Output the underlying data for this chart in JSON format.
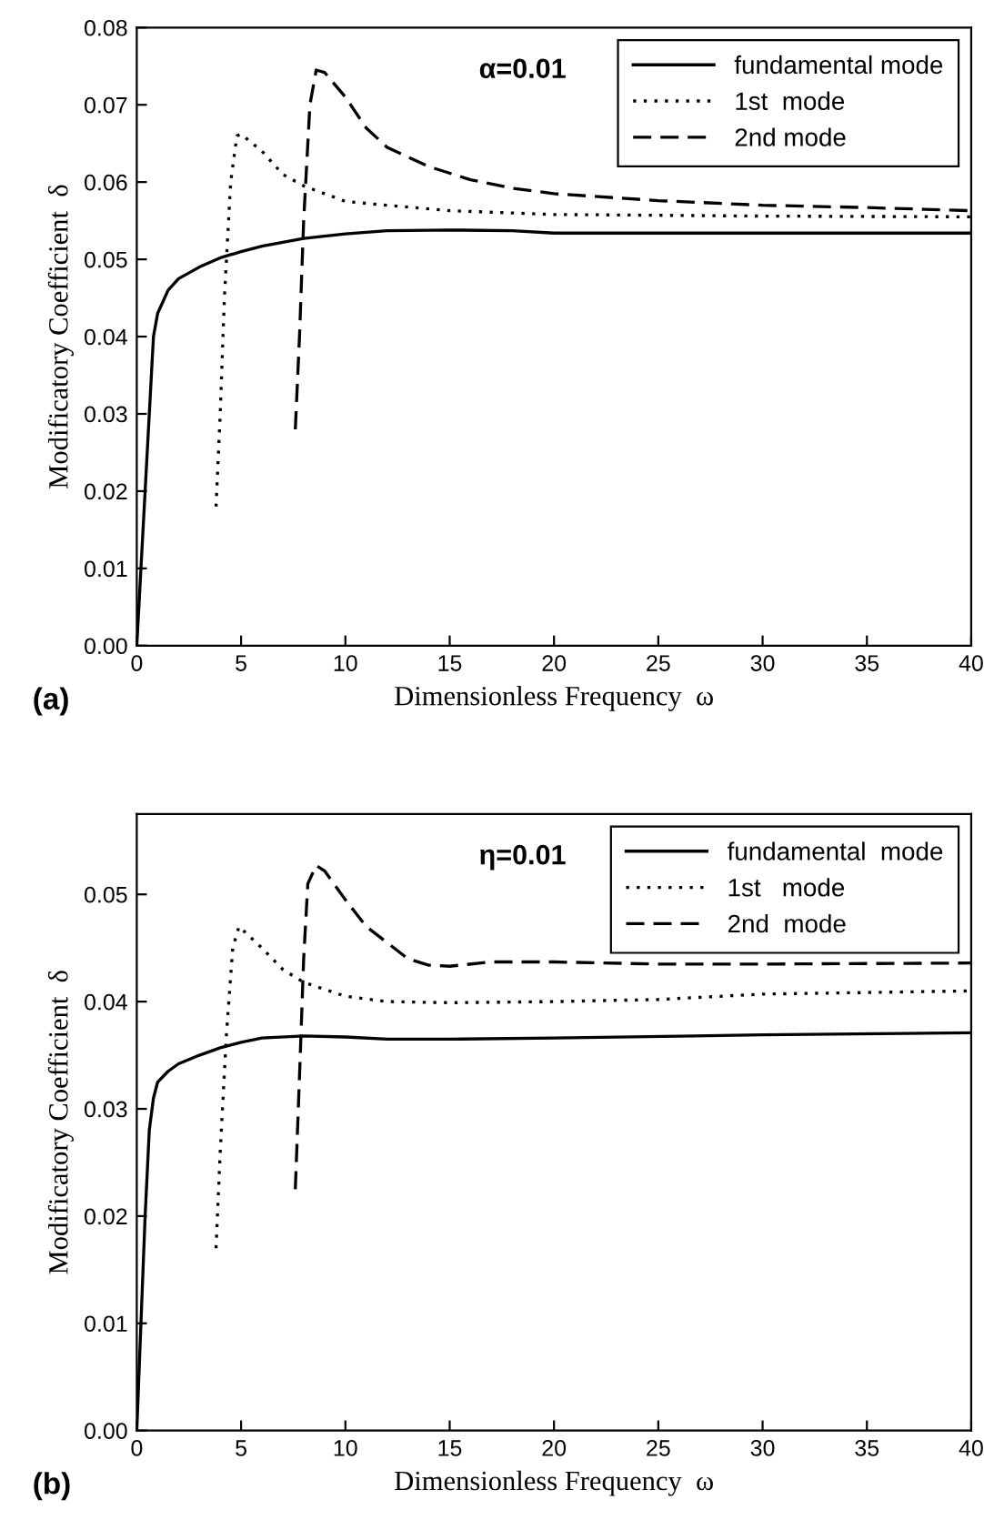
{
  "chart_data": [
    {
      "type": "line",
      "xlabel": "Dimensionless Frequency  ω",
      "ylabel": "Modificatory Coefficient  δ",
      "annotations": [
        "α=0.01",
        "(a)"
      ],
      "xlim": [
        0,
        40
      ],
      "ylim": [
        0,
        0.08
      ],
      "xticks": [
        0,
        5,
        10,
        15,
        20,
        25,
        30,
        35,
        40
      ],
      "yticks": [
        {
          "value": 0,
          "label": "0.00"
        },
        {
          "value": 0.01,
          "label": "0.01"
        },
        {
          "value": 0.02,
          "label": "0.02"
        },
        {
          "value": 0.03,
          "label": "0.03"
        },
        {
          "value": 0.04,
          "label": "0.04"
        },
        {
          "value": 0.05,
          "label": "0.05"
        },
        {
          "value": 0.06,
          "label": "0.06"
        },
        {
          "value": 0.07,
          "label": "0.07"
        },
        {
          "value": 0.08,
          "label": "0.08"
        }
      ],
      "legend": "top right",
      "grid": false,
      "marker": "none",
      "series": [
        {
          "name": "fundamental mode",
          "color": "#000000",
          "line_style": "solid",
          "x": [
            0,
            0.2,
            0.4,
            0.6,
            0.8,
            1,
            1.5,
            2,
            3,
            4,
            5,
            6,
            8,
            10,
            12,
            15,
            18,
            20,
            25,
            30,
            40
          ],
          "values": [
            0,
            0.01,
            0.02,
            0.03,
            0.04,
            0.043,
            0.046,
            0.0475,
            0.049,
            0.0502,
            0.051,
            0.0517,
            0.0527,
            0.0533,
            0.0537,
            0.0538,
            0.0537,
            0.0534,
            0.0534,
            0.0534,
            0.0534
          ]
        },
        {
          "name": "1st  mode",
          "color": "#000000",
          "line_style": "dotted",
          "x": [
            3.8,
            4.0,
            4.2,
            4.5,
            4.8,
            5,
            6,
            7,
            8,
            9,
            10,
            12,
            15,
            20,
            30,
            40
          ],
          "values": [
            0.018,
            0.03,
            0.045,
            0.06,
            0.066,
            0.0662,
            0.064,
            0.061,
            0.0595,
            0.0585,
            0.0575,
            0.057,
            0.0563,
            0.0558,
            0.0556,
            0.0555
          ]
        },
        {
          "name": "2nd mode",
          "color": "#000000",
          "line_style": "dashed",
          "x": [
            7.6,
            7.8,
            8.0,
            8.3,
            8.6,
            9,
            10,
            11,
            12,
            14,
            16,
            18,
            20,
            25,
            30,
            35,
            40
          ],
          "values": [
            0.028,
            0.04,
            0.055,
            0.07,
            0.0745,
            0.0742,
            0.071,
            0.067,
            0.0645,
            0.062,
            0.0603,
            0.0592,
            0.0585,
            0.0576,
            0.057,
            0.0567,
            0.0563
          ]
        }
      ]
    },
    {
      "type": "line",
      "xlabel": "Dimensionless Frequency  ω",
      "ylabel": "Modificatory Coefficient  δ",
      "annotations": [
        "η=0.01",
        "(b)"
      ],
      "xlim": [
        0,
        40
      ],
      "ylim": [
        0,
        0.0575
      ],
      "xticks": [
        0,
        5,
        10,
        15,
        20,
        25,
        30,
        35,
        40
      ],
      "yticks": [
        {
          "value": 0,
          "label": "0.00"
        },
        {
          "value": 0.01,
          "label": "0.01"
        },
        {
          "value": 0.02,
          "label": "0.02"
        },
        {
          "value": 0.03,
          "label": "0.03"
        },
        {
          "value": 0.04,
          "label": "0.04"
        },
        {
          "value": 0.05,
          "label": "0.05"
        }
      ],
      "legend": "top right",
      "grid": false,
      "marker": "none",
      "series": [
        {
          "name": "fundamental  mode",
          "color": "#000000",
          "line_style": "solid",
          "x": [
            0,
            0.2,
            0.4,
            0.6,
            0.8,
            1,
            1.5,
            2,
            3,
            4,
            5,
            6,
            8,
            10,
            12,
            15,
            20,
            30,
            40
          ],
          "values": [
            0,
            0.01,
            0.02,
            0.028,
            0.031,
            0.0325,
            0.0335,
            0.0342,
            0.035,
            0.0357,
            0.0362,
            0.0366,
            0.0368,
            0.0367,
            0.0365,
            0.0365,
            0.0366,
            0.0369,
            0.0371
          ]
        },
        {
          "name": "1st   mode",
          "color": "#000000",
          "line_style": "dotted",
          "x": [
            3.8,
            4.0,
            4.3,
            4.6,
            4.9,
            6,
            7,
            8,
            10,
            12,
            15,
            20,
            25,
            30,
            40
          ],
          "values": [
            0.017,
            0.026,
            0.037,
            0.045,
            0.047,
            0.045,
            0.043,
            0.0418,
            0.0405,
            0.04,
            0.0399,
            0.04,
            0.0402,
            0.0407,
            0.041
          ]
        },
        {
          "name": "2nd  mode",
          "color": "#000000",
          "line_style": "dashed",
          "x": [
            7.6,
            7.8,
            8.0,
            8.2,
            8.6,
            9,
            10,
            11,
            12,
            13,
            14,
            15,
            17,
            20,
            25,
            30,
            40
          ],
          "values": [
            0.0225,
            0.033,
            0.044,
            0.051,
            0.0527,
            0.0522,
            0.0495,
            0.047,
            0.0455,
            0.044,
            0.0434,
            0.0433,
            0.0437,
            0.0437,
            0.0435,
            0.0435,
            0.0436
          ]
        }
      ]
    }
  ]
}
